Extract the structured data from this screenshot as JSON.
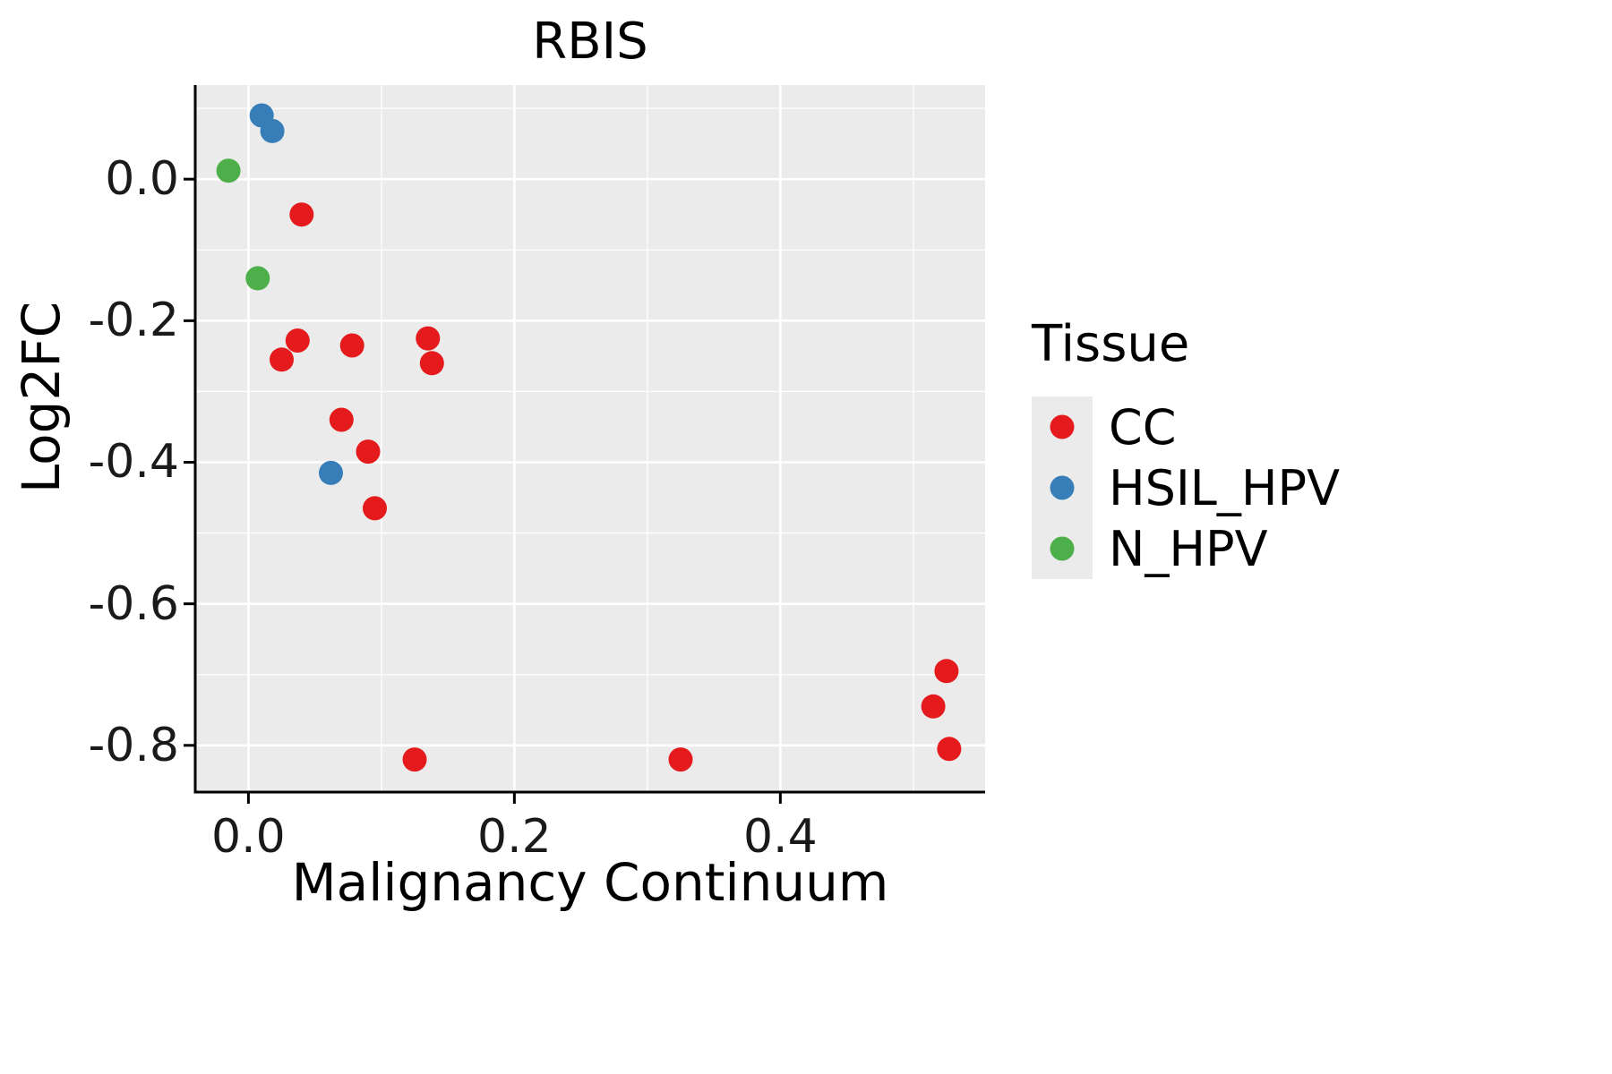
{
  "chart_data": {
    "type": "scatter",
    "title": "RBIS",
    "xlabel": "Malignancy Continuum",
    "ylabel": "Log2FC",
    "xlim": [
      -0.04,
      0.554
    ],
    "ylim": [
      -0.866,
      0.133
    ],
    "xticks": [
      0.0,
      0.2,
      0.4
    ],
    "xtick_labels": [
      "0.0",
      "0.2",
      "0.4"
    ],
    "yticks": [
      0.0,
      -0.2,
      -0.4,
      -0.6,
      -0.8
    ],
    "ytick_labels": [
      "0.0",
      "-0.2",
      "-0.4",
      "-0.6",
      "-0.8"
    ],
    "xminor": [
      0.1,
      0.3,
      0.5
    ],
    "yminor": [
      0.1,
      -0.1,
      -0.3,
      -0.5,
      -0.7
    ],
    "grid": true,
    "legend_position": "right",
    "legend_title": "Tissue",
    "panel_bg": "#EBEBEB",
    "grid_color": "#FFFFFF",
    "axis_color": "#000000",
    "point_radius": 13.5,
    "series": [
      {
        "name": "CC",
        "color": "#E41A1C",
        "points": [
          [
            0.04,
            -0.05
          ],
          [
            0.025,
            -0.255
          ],
          [
            0.037,
            -0.228
          ],
          [
            0.078,
            -0.235
          ],
          [
            0.135,
            -0.225
          ],
          [
            0.138,
            -0.26
          ],
          [
            0.07,
            -0.34
          ],
          [
            0.09,
            -0.385
          ],
          [
            0.095,
            -0.465
          ],
          [
            0.125,
            -0.82
          ],
          [
            0.325,
            -0.82
          ],
          [
            0.525,
            -0.695
          ],
          [
            0.515,
            -0.745
          ],
          [
            0.527,
            -0.805
          ]
        ]
      },
      {
        "name": "HSIL_HPV",
        "color": "#377EB8",
        "points": [
          [
            0.01,
            0.09
          ],
          [
            0.018,
            0.068
          ],
          [
            0.062,
            -0.415
          ]
        ]
      },
      {
        "name": "N_HPV",
        "color": "#4DAF4A",
        "points": [
          [
            -0.015,
            0.012
          ],
          [
            0.007,
            -0.14
          ]
        ]
      }
    ]
  }
}
